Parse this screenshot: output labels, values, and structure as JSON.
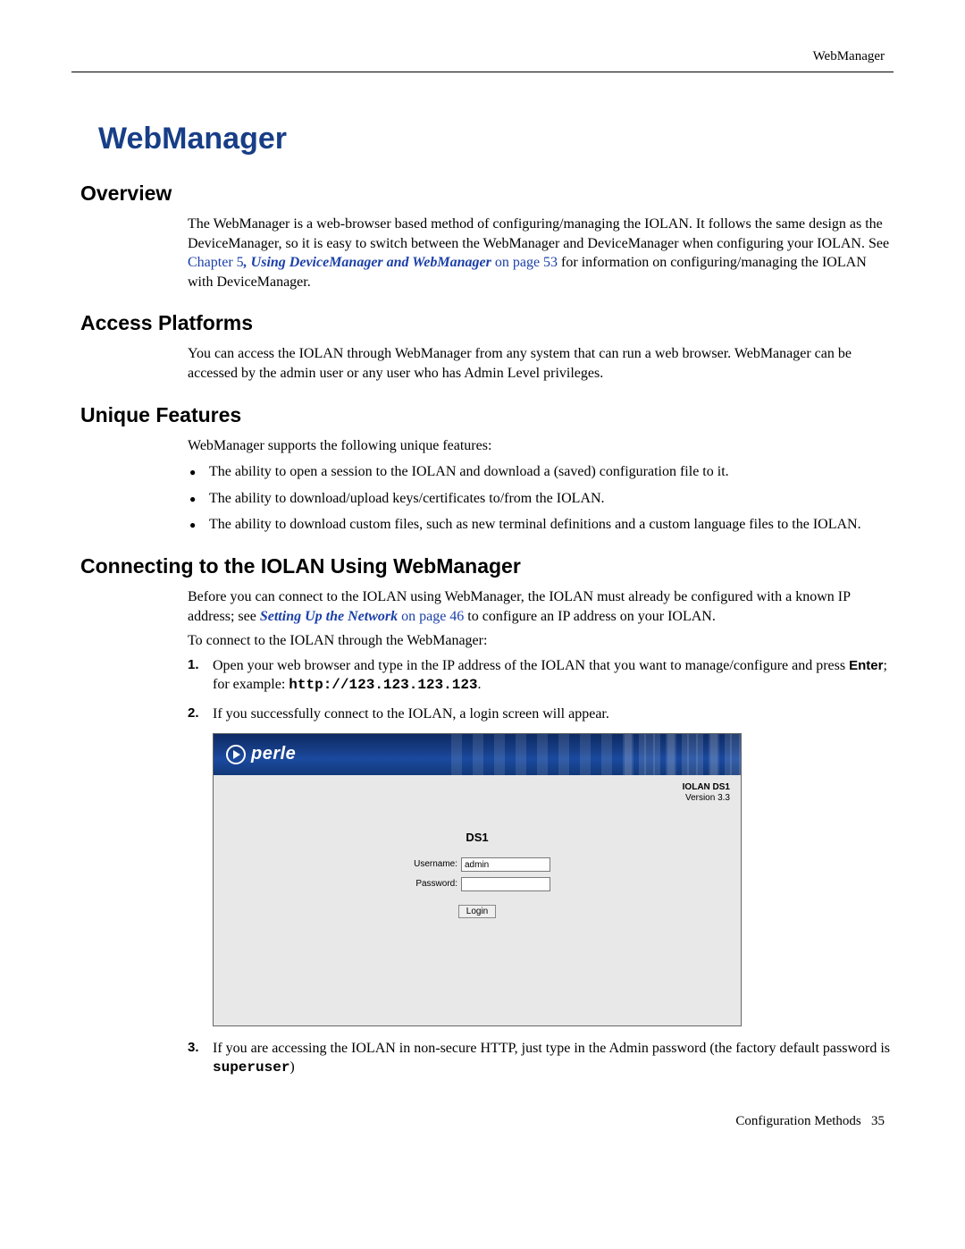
{
  "header": {
    "right": "WebManager"
  },
  "title": "WebManager",
  "title_color": "#173e87",
  "sections": {
    "overview": {
      "heading": "Overview",
      "para_before_link": "The WebManager is a web-browser based method of configuring/managing the IOLAN. It follows the same design as the DeviceManager, so it is easy to switch between the WebManager and DeviceManager when configuring your IOLAN. See ",
      "link1_a": "Chapter 5",
      "link1_sep": ", ",
      "link1_b": "Using DeviceManager and WebManager",
      "link1_c": " on page 53",
      "para_after_link": " for information on configuring/managing the IOLAN with DeviceManager."
    },
    "access": {
      "heading": "Access Platforms",
      "para": "You can access the IOLAN through WebManager from any system that can run a web browser. WebManager can be accessed by the admin user or any user who has Admin Level privileges."
    },
    "features": {
      "heading": "Unique Features",
      "intro": "WebManager supports the following unique features:",
      "items": [
        "The ability to open a session to the IOLAN and download a (saved) configuration file to it.",
        "The ability to download/upload keys/certificates to/from the IOLAN.",
        "The ability to download custom files, such as new terminal definitions and a custom language files to the IOLAN."
      ]
    },
    "connecting": {
      "heading": "Connecting to the IOLAN Using WebManager",
      "para1_before": "Before you can connect to the IOLAN using WebManager, the IOLAN must already be configured with a known IP address; see ",
      "para1_link_a": "Setting Up the Network",
      "para1_link_b": " on page 46",
      "para1_after": " to configure an IP address on your IOLAN.",
      "para2": "To connect to the IOLAN through the WebManager:",
      "step1_before": "Open your web browser and type in the IP address of the IOLAN that you want to manage/configure and press ",
      "step1_enter": "Enter",
      "step1_mid": "; for example: ",
      "step1_code": "http://123.123.123.123",
      "step1_after": ".",
      "step2": "If you successfully connect to the IOLAN, a login screen will appear.",
      "step3_before": "If you are accessing the IOLAN in non-secure HTTP, just type in the Admin password (the factory default password is ",
      "step3_code": "superuser",
      "step3_after": ")"
    }
  },
  "login_shot": {
    "logo_text": "perle",
    "model": "IOLAN DS1",
    "version": "Version 3.3",
    "form_title": "DS1",
    "username_label": "Username:",
    "username_value": "admin",
    "password_label": "Password:",
    "login_button": "Login"
  },
  "footer": {
    "left": "Configuration Methods",
    "page": "35"
  }
}
